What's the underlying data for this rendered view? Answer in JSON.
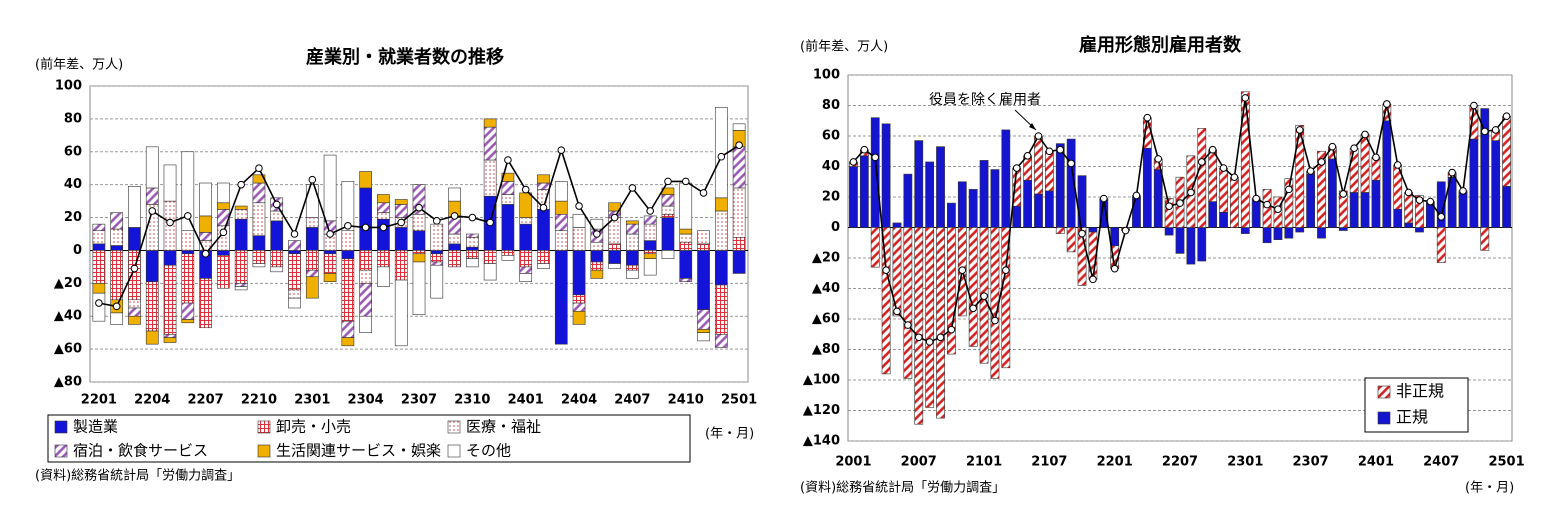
{
  "chart_data": [
    {
      "type": "bar",
      "stacked": true,
      "title": "産業別・就業者数の推移",
      "ylabel": "(前年差、万人)",
      "xlabel": "(年・月)",
      "source": "(資料)総務省統計局「労働力調査」",
      "categories": [
        "2201",
        null,
        null,
        "2204",
        null,
        null,
        "2207",
        null,
        null,
        "2210",
        null,
        null,
        "2301",
        null,
        null,
        "2304",
        null,
        null,
        "2307",
        null,
        null,
        "2310",
        null,
        null,
        "2401",
        null,
        null,
        "2404",
        null,
        null,
        "2407",
        null,
        null,
        "2410",
        null,
        null,
        "2501"
      ],
      "series": [
        {
          "name": "製造業",
          "color": "#1414d8",
          "fill": "solid",
          "values": [
            4,
            3,
            14,
            -19,
            -9,
            -2,
            -17,
            -3,
            19,
            9,
            18,
            -2,
            14,
            -2,
            -5,
            38,
            19,
            14,
            12,
            -2,
            4,
            2,
            33,
            28,
            16,
            25,
            -57,
            -27,
            -7,
            -8,
            -9,
            6,
            20,
            -17,
            -36,
            -21,
            -14
          ]
        },
        {
          "name": "卸売・小売",
          "color": "#e0303a",
          "fill": "grid",
          "values": [
            -20,
            -30,
            -30,
            -30,
            -42,
            -30,
            -30,
            -20,
            -20,
            -8,
            -10,
            -22,
            -12,
            -12,
            -38,
            -12,
            -10,
            -18,
            -2,
            -5,
            -10,
            -5,
            -8,
            -3,
            -10,
            -8,
            0,
            -5,
            -5,
            4,
            -3,
            -2,
            2,
            5,
            4,
            -30,
            8
          ]
        },
        {
          "name": "医療・福祉",
          "color": "#d84040",
          "fill": "dots",
          "values": [
            8,
            10,
            -5,
            28,
            30,
            12,
            6,
            15,
            6,
            20,
            6,
            -5,
            6,
            10,
            12,
            -8,
            4,
            6,
            10,
            16,
            6,
            6,
            22,
            6,
            4,
            12,
            12,
            14,
            5,
            16,
            10,
            10,
            5,
            5,
            8,
            24,
            30
          ]
        },
        {
          "name": "宿泊・飲食サービス",
          "color": "#9b59b6",
          "fill": "hatch",
          "values": [
            4,
            10,
            -5,
            10,
            -2,
            -10,
            5,
            10,
            -2,
            12,
            8,
            6,
            -4,
            8,
            -10,
            -20,
            6,
            8,
            18,
            -2,
            10,
            2,
            20,
            8,
            -4,
            4,
            10,
            -5,
            8,
            4,
            6,
            5,
            7,
            -2,
            -12,
            -8,
            25
          ]
        },
        {
          "name": "生活関連サービス・娯楽",
          "color": "#f0b000",
          "fill": "solid",
          "values": [
            -6,
            -8,
            -5,
            -8,
            -3,
            -2,
            10,
            4,
            2,
            5,
            0,
            0,
            -13,
            -5,
            -5,
            10,
            5,
            3,
            -5,
            0,
            10,
            0,
            5,
            5,
            15,
            5,
            8,
            -8,
            -5,
            5,
            2,
            -3,
            4,
            3,
            -2,
            8,
            10
          ]
        },
        {
          "name": "その他",
          "color": "#ffffff",
          "fill": "solid",
          "values": [
            -17,
            -7,
            25,
            25,
            22,
            48,
            20,
            12,
            -2,
            -2,
            -3,
            -6,
            20,
            40,
            30,
            -10,
            -12,
            -40,
            -32,
            -20,
            8,
            -5,
            -10,
            -3,
            -5,
            -3,
            12,
            8,
            6,
            -3,
            -5,
            -10,
            -5,
            28,
            -5,
            55,
            4
          ]
        }
      ],
      "total": {
        "values": [
          -32,
          -34,
          -11,
          24,
          17,
          21,
          -2,
          11,
          40,
          50,
          28,
          10,
          43,
          10,
          15,
          14,
          14,
          17,
          26,
          18,
          21,
          20,
          17,
          55,
          37,
          26,
          61,
          27,
          10,
          20,
          38,
          24,
          42,
          42,
          35,
          57,
          64
        ]
      },
      "ylim": [
        -80,
        100
      ],
      "yticks": [
        {
          "value": -80,
          "label": "▲80"
        },
        {
          "value": -60,
          "label": "▲60"
        },
        {
          "value": -40,
          "label": "▲40"
        },
        {
          "value": -20,
          "label": "▲20"
        },
        0,
        20,
        40,
        60,
        80,
        100
      ],
      "grid": true,
      "legend": "bottom"
    },
    {
      "type": "bar",
      "stacked": true,
      "title": "雇用形態別雇用者数",
      "ylabel": "(前年差、万人)",
      "xlabel": "(年・月)",
      "source": "(資料)総務省統計局「労働力調査」",
      "categories": [
        "2001",
        null,
        null,
        null,
        null,
        null,
        "2007",
        null,
        null,
        null,
        null,
        null,
        "2101",
        null,
        null,
        null,
        null,
        null,
        "2107",
        null,
        null,
        null,
        null,
        null,
        "2201",
        null,
        null,
        null,
        null,
        null,
        "2207",
        null,
        null,
        null,
        null,
        null,
        "2301",
        null,
        null,
        null,
        null,
        null,
        "2307",
        null,
        null,
        null,
        null,
        null,
        "2401",
        null,
        null,
        null,
        null,
        null,
        "2407",
        null,
        null,
        null,
        null,
        null,
        "2501"
      ],
      "series": [
        {
          "name": "非正規",
          "color": "#d62020",
          "fill": "hatch",
          "values": [
            3,
            4,
            -26,
            -96,
            -58,
            -99,
            -129,
            -118,
            -125,
            -83,
            -58,
            -78,
            -89,
            -99,
            -92,
            25,
            16,
            38,
            26,
            -4,
            -16,
            -38,
            -31,
            1,
            -15,
            -2,
            1,
            20,
            7,
            19,
            33,
            47,
            65,
            34,
            29,
            33,
            89,
            1,
            25,
            20,
            32,
            67,
            2,
            50,
            8,
            24,
            29,
            38,
            15,
            11,
            29,
            20,
            21,
            0,
            -23,
            3,
            1,
            22,
            -15,
            7,
            46
          ]
        },
        {
          "name": "正規",
          "color": "#1515d0",
          "fill": "solid",
          "values": [
            40,
            47,
            72,
            68,
            3,
            35,
            57,
            43,
            53,
            16,
            30,
            25,
            44,
            38,
            64,
            14,
            31,
            22,
            24,
            55,
            58,
            34,
            -3,
            18,
            -12,
            0,
            20,
            52,
            38,
            -5,
            -17,
            -24,
            -22,
            17,
            10,
            0,
            -4,
            18,
            -10,
            -8,
            -7,
            -3,
            35,
            -7,
            45,
            -2,
            23,
            23,
            31,
            70,
            12,
            3,
            -3,
            17,
            30,
            33,
            23,
            58,
            78,
            57,
            27
          ]
        }
      ],
      "total": {
        "name": "役員を除く雇用者",
        "values": [
          43,
          51,
          46,
          -28,
          -55,
          -64,
          -72,
          -75,
          -72,
          -67,
          -28,
          -53,
          -45,
          -61,
          -28,
          39,
          47,
          60,
          50,
          51,
          42,
          -4,
          -34,
          19,
          -27,
          -2,
          21,
          72,
          45,
          14,
          16,
          23,
          43,
          51,
          39,
          33,
          85,
          19,
          15,
          12,
          25,
          64,
          37,
          43,
          53,
          22,
          52,
          61,
          46,
          81,
          41,
          23,
          18,
          17,
          7,
          36,
          24,
          80,
          63,
          64,
          73
        ]
      },
      "ylim": [
        -140,
        100
      ],
      "yticks": [
        {
          "value": -140,
          "label": "▲140"
        },
        {
          "value": -120,
          "label": "▲120"
        },
        {
          "value": -100,
          "label": "▲100"
        },
        {
          "value": -80,
          "label": "▲80"
        },
        {
          "value": -60,
          "label": "▲60"
        },
        {
          "value": -40,
          "label": "▲40"
        },
        {
          "value": -20,
          "label": "▲20"
        },
        0,
        20,
        40,
        60,
        80,
        100
      ],
      "grid": true,
      "legend": "lower right"
    }
  ]
}
